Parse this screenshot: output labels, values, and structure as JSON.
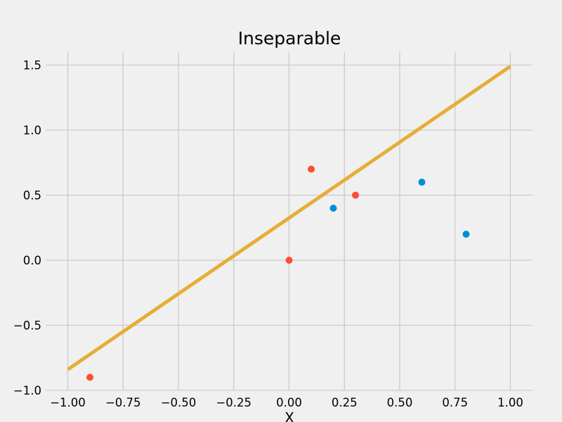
{
  "chart_data": {
    "type": "scatter",
    "title": "Inseparable",
    "xlabel": "X",
    "ylabel": "",
    "xlim": [
      -1.1,
      1.1
    ],
    "ylim": [
      -1.0,
      1.6
    ],
    "grid": true,
    "x_ticks": [
      -1.0,
      -0.75,
      -0.5,
      -0.25,
      0.0,
      0.25,
      0.5,
      0.75,
      1.0
    ],
    "x_tick_labels": [
      "−1.00",
      "−0.75",
      "−0.50",
      "−0.25",
      "0.00",
      "0.25",
      "0.50",
      "0.75",
      "1.00"
    ],
    "y_ticks": [
      -1.0,
      -0.5,
      0.0,
      0.5,
      1.0,
      1.5
    ],
    "y_tick_labels": [
      "−1.0",
      "−0.5",
      "0.0",
      "0.5",
      "1.0",
      "1.5"
    ],
    "series": [
      {
        "kind": "scatter",
        "color": "#fc4f30",
        "points": [
          [
            -0.9,
            -0.9
          ],
          [
            0.0,
            0.0
          ],
          [
            0.1,
            0.7
          ],
          [
            0.3,
            0.5
          ]
        ]
      },
      {
        "kind": "scatter",
        "color": "#008fd5",
        "points": [
          [
            0.2,
            0.4
          ],
          [
            0.6,
            0.6
          ],
          [
            0.8,
            0.2
          ]
        ]
      },
      {
        "kind": "line",
        "color": "#e5ae38",
        "points": [
          [
            -1.0,
            -0.84
          ],
          [
            1.0,
            1.49
          ]
        ]
      }
    ]
  }
}
